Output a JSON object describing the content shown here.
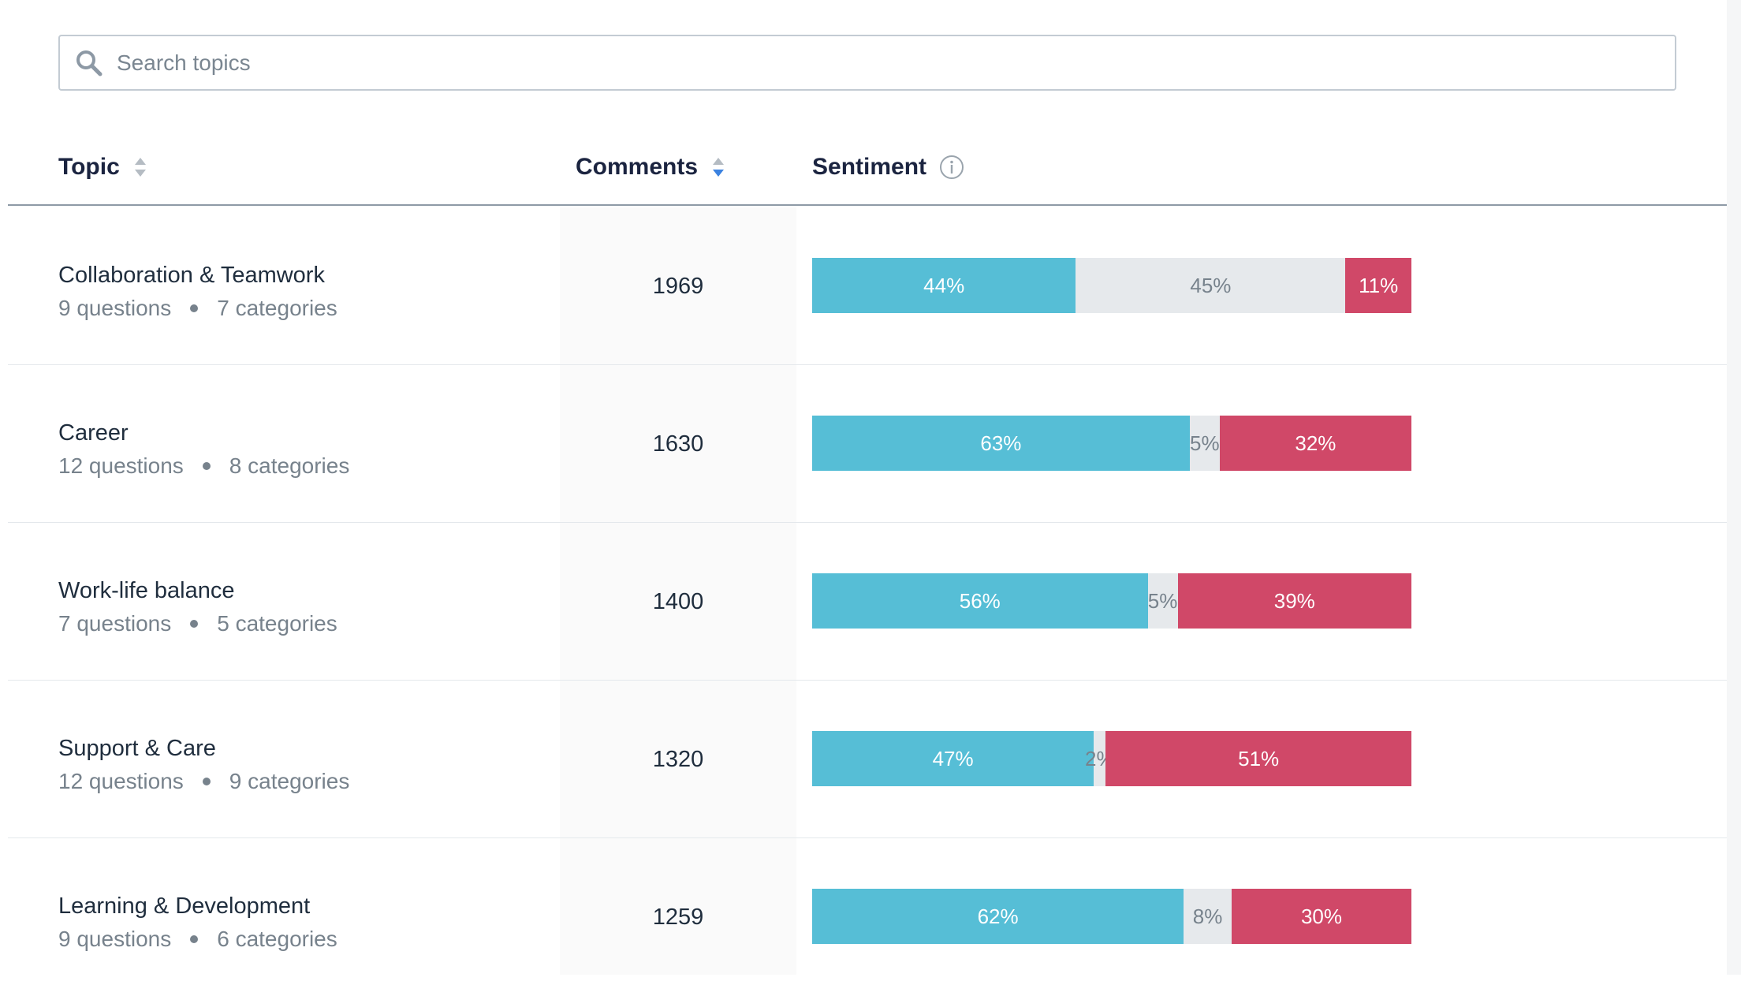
{
  "search": {
    "placeholder": "Search topics"
  },
  "table": {
    "headers": {
      "topic": "Topic",
      "comments": "Comments",
      "sentiment": "Sentiment"
    },
    "rows": [
      {
        "name": "Collaboration & Teamwork",
        "questions": "9 questions",
        "categories": "7 categories",
        "comments": "1969",
        "sentiment": {
          "positive": 44,
          "neutral": 45,
          "negative": 11,
          "positive_label": "44%",
          "neutral_label": "45%",
          "negative_label": "11%"
        }
      },
      {
        "name": "Career",
        "questions": "12 questions",
        "categories": "8 categories",
        "comments": "1630",
        "sentiment": {
          "positive": 63,
          "neutral": 5,
          "negative": 32,
          "positive_label": "63%",
          "neutral_label": "5%",
          "negative_label": "32%"
        }
      },
      {
        "name": "Work-life balance",
        "questions": "7 questions",
        "categories": "5 categories",
        "comments": "1400",
        "sentiment": {
          "positive": 56,
          "neutral": 5,
          "negative": 39,
          "positive_label": "56%",
          "neutral_label": "5%",
          "negative_label": "39%"
        }
      },
      {
        "name": "Support & Care",
        "questions": "12 questions",
        "categories": "9 categories",
        "comments": "1320",
        "sentiment": {
          "positive": 47,
          "neutral": 2,
          "negative": 51,
          "positive_label": "47%",
          "neutral_label": "2%",
          "negative_label": "51%"
        }
      },
      {
        "name": "Learning & Development",
        "questions": "9 questions",
        "categories": "6 categories",
        "comments": "1259",
        "sentiment": {
          "positive": 62,
          "neutral": 8,
          "negative": 30,
          "positive_label": "62%",
          "neutral_label": "8%",
          "negative_label": "30%"
        }
      }
    ]
  },
  "icons": {
    "search": "search-icon",
    "sort": "sort-icon",
    "info": "info-icon"
  },
  "colors": {
    "positive": "#56bed6",
    "neutral": "#e6e9ec",
    "negative": "#d04868",
    "sort_active": "#3b82e0"
  }
}
